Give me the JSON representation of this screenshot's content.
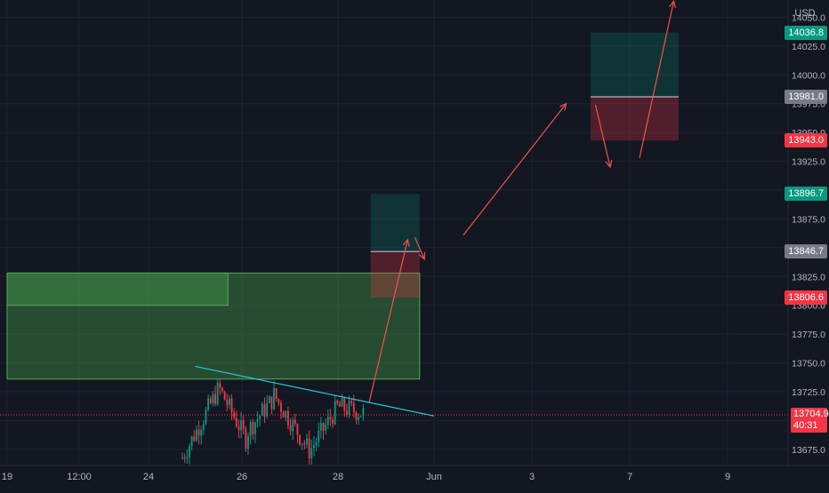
{
  "chart_data": {
    "type": "candlestick",
    "currency_label": "USD",
    "y_ticks": [
      13675.0,
      13700.0,
      13725.0,
      13750.0,
      13775.0,
      13800.0,
      13825.0,
      13850.0,
      13875.0,
      13900.0,
      13925.0,
      13950.0,
      13975.0,
      14000.0,
      14025.0,
      14050.0
    ],
    "y_tick_labels": [
      "13675.0",
      "13700.0",
      "13725.0",
      "13750.0",
      "13775.0",
      "13800.0",
      "13825.0",
      "13850.0",
      "13875.0",
      "13900.0",
      "13925.0",
      "13950.0",
      "13975.0",
      "14000.0",
      "14025.0",
      "14050.0"
    ],
    "y_range": [
      13661,
      14065
    ],
    "x_ticks": [
      {
        "label": "19",
        "day": 19.0
      },
      {
        "label": "12:00",
        "day": 19.5
      },
      {
        "label": "24",
        "day": 24.0
      },
      {
        "label": "26",
        "day": 26.0
      },
      {
        "label": "28",
        "day": 28.0
      },
      {
        "label": "Jun",
        "day": 30.0
      },
      {
        "label": "3",
        "day": 32.0
      },
      {
        "label": "7",
        "day": 34.0
      },
      {
        "label": "9",
        "day": 36.0
      }
    ],
    "price_tags": [
      {
        "label": "14036.8",
        "value": 14036.8,
        "color": "#089981"
      },
      {
        "label": "13981.0",
        "value": 13981.0,
        "color": "#787b86"
      },
      {
        "label": "13943.0",
        "value": 13943.0,
        "color": "#f23645"
      },
      {
        "label": "13896.7",
        "value": 13896.7,
        "color": "#089981"
      },
      {
        "label": "13846.7",
        "value": 13846.7,
        "color": "#787b86"
      },
      {
        "label": "13806.6",
        "value": 13806.6,
        "color": "#f23645"
      }
    ],
    "last_price": {
      "value": 13704.9,
      "label": "13704.9",
      "countdown": "40:31",
      "color": "#f23645"
    },
    "zones": [
      {
        "kind": "demand",
        "x0": 19.0,
        "x1": 29.7,
        "y0": 13736,
        "y1": 13828
      },
      {
        "kind": "demand-upper",
        "x0": 19.0,
        "x1": 25.7,
        "y0": 13800,
        "y1": 13828
      },
      {
        "kind": "target",
        "x0": 28.68,
        "x1": 29.7,
        "y0": 13846.7,
        "y1": 13896.7
      },
      {
        "kind": "stop",
        "x0": 28.68,
        "x1": 29.7,
        "y0": 13806.6,
        "y1": 13846.7
      },
      {
        "kind": "target",
        "x0": 33.2,
        "x1": 35.0,
        "y0": 13981.0,
        "y1": 14036.8
      },
      {
        "kind": "stop",
        "x0": 33.2,
        "x1": 35.0,
        "y0": 13943.0,
        "y1": 13981.0
      }
    ],
    "trendline": {
      "x0": 25.0,
      "y0": 13747,
      "x1": 30.0,
      "y1": 13704
    },
    "arrows": [
      {
        "x0": 28.65,
        "y0": 13716,
        "x1": 29.45,
        "y1": 13857
      },
      {
        "x0": 29.6,
        "y0": 13859,
        "x1": 29.8,
        "y1": 13840
      },
      {
        "x0": 30.6,
        "y0": 13861,
        "x1": 32.7,
        "y1": 13975
      },
      {
        "x0": 33.3,
        "y0": 13974,
        "x1": 33.6,
        "y1": 13920
      },
      {
        "x0": 34.2,
        "y0": 13928,
        "x1": 34.9,
        "y1": 14064
      }
    ],
    "candles_seed": 7,
    "candle_range": {
      "x0": 24.7,
      "x1": 28.55,
      "count": 78
    }
  }
}
